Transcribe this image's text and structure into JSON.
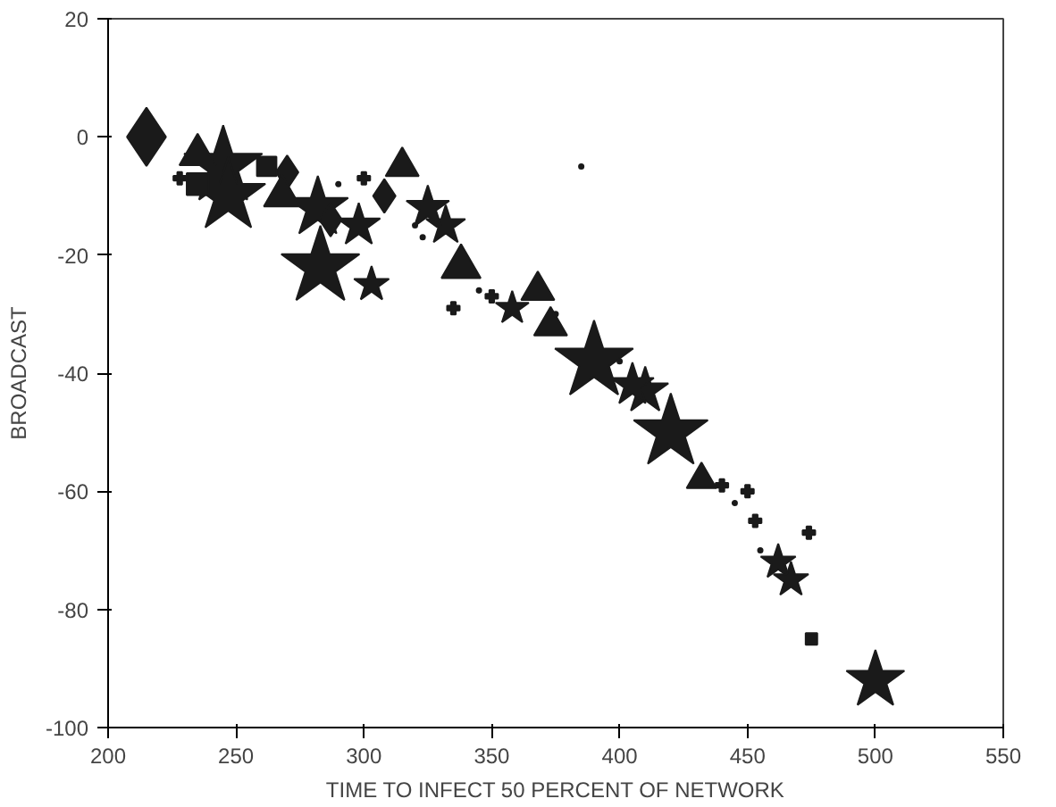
{
  "chart_data": {
    "type": "bubble",
    "xlabel": "TIME TO INFECT 50 PERCENT OF NETWORK",
    "ylabel": "BROADCAST",
    "xlim": [
      200,
      550
    ],
    "ylim": [
      -100,
      20
    ],
    "xticks": [
      200,
      250,
      300,
      350,
      400,
      450,
      500,
      550
    ],
    "yticks": [
      -100,
      -80,
      -60,
      -40,
      -20,
      0,
      20
    ],
    "grid": false,
    "series": [
      {
        "marker": "star",
        "color": "#1a1a1a",
        "x": [
          245,
          247,
          283,
          390,
          420,
          282,
          500,
          303,
          332,
          325,
          462,
          467,
          358,
          410,
          298,
          405
        ],
        "values": [
          -5,
          -10,
          -22,
          -38,
          -50,
          -12,
          -92,
          -25,
          -15,
          -12,
          -72,
          -75,
          -29,
          -43,
          -15,
          -42
        ],
        "sizes": [
          1,
          0.9,
          1,
          1,
          0.9,
          0.6,
          0.55,
          0.2,
          0.25,
          0.3,
          0.2,
          0.2,
          0.18,
          0.35,
          0.3,
          0.3
        ]
      },
      {
        "marker": "diamond",
        "color": "#1a1a1a",
        "x": [
          215,
          308,
          287,
          270
        ],
        "values": [
          0,
          -10,
          -14,
          -6
        ],
        "sizes": [
          0.6,
          0.2,
          0.2,
          0.2
        ]
      },
      {
        "marker": "triangle",
        "color": "#1a1a1a",
        "x": [
          315,
          368,
          338,
          373,
          432,
          268,
          235
        ],
        "values": [
          -5,
          -26,
          -22,
          -32,
          -58,
          -10,
          -3
        ],
        "sizes": [
          0.25,
          0.25,
          0.35,
          0.25,
          0.2,
          0.3,
          0.3
        ]
      },
      {
        "marker": "square",
        "color": "#1a1a1a",
        "x": [
          475,
          235,
          262
        ],
        "values": [
          -85,
          -8,
          -5
        ],
        "sizes": [
          0.07,
          0.25,
          0.2
        ]
      },
      {
        "marker": "cross",
        "color": "#1a1a1a",
        "x": [
          335,
          350,
          474,
          453,
          450,
          440,
          300,
          228
        ],
        "values": [
          -29,
          -27,
          -67,
          -65,
          -60,
          -59,
          -7,
          -7
        ],
        "sizes": [
          0.05,
          0.05,
          0.05,
          0.05,
          0.05,
          0.05,
          0.05,
          0.05
        ]
      },
      {
        "marker": "circle",
        "color": "#1a1a1a",
        "x": [
          385,
          323,
          445,
          455,
          320,
          375,
          400,
          290,
          345
        ],
        "values": [
          -5,
          -17,
          -62,
          -70,
          -15,
          -30,
          -38,
          -8,
          -26
        ],
        "sizes": [
          0.003,
          0.003,
          0.003,
          0.003,
          0.003,
          0.003,
          0.003,
          0.003,
          0.003
        ]
      }
    ]
  }
}
